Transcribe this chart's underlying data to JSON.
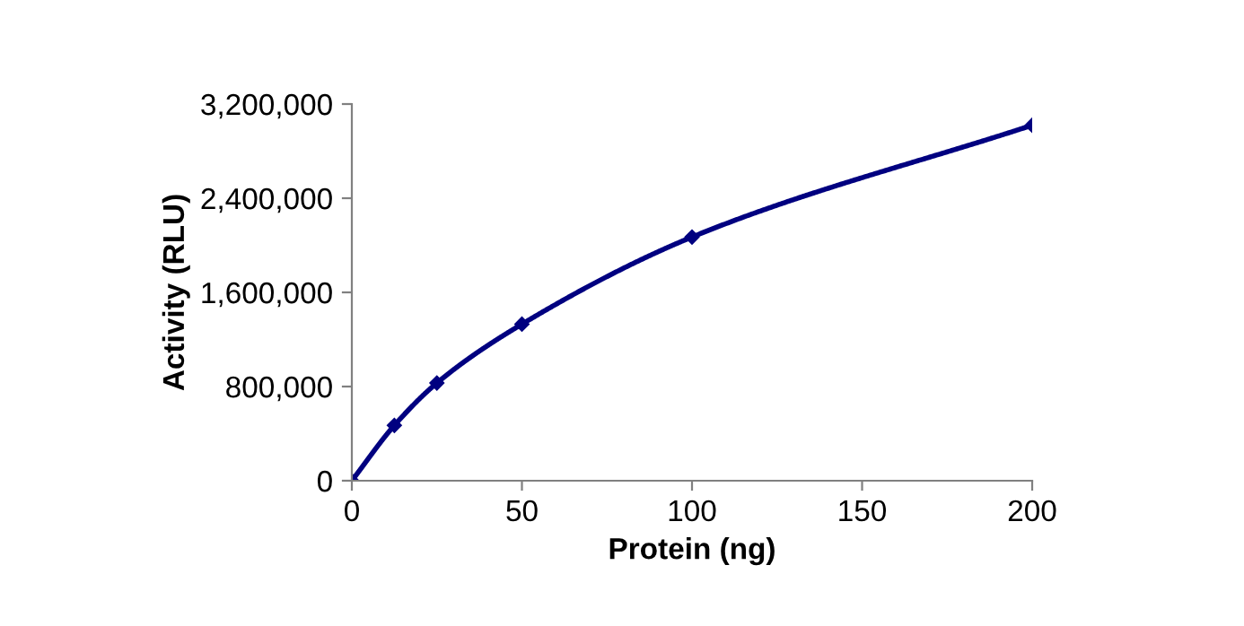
{
  "chart_data": {
    "type": "line",
    "xlabel": "Protein (ng)",
    "ylabel": "Activity (RLU)",
    "x": [
      0,
      12.5,
      25,
      50,
      100,
      200
    ],
    "series": [
      {
        "color": "#000080",
        "values": [
          0,
          470000,
          830000,
          1330000,
          2070000,
          3020000
        ]
      }
    ],
    "xlim": [
      0,
      200
    ],
    "xticks": [
      0,
      50,
      100,
      150,
      200
    ],
    "ylim": [
      0,
      3200000
    ],
    "yticks": [
      {
        "value": 0,
        "label": "0"
      },
      {
        "value": 800000,
        "label": "800,000"
      },
      {
        "value": 1600000,
        "label": "1,600,000"
      },
      {
        "value": 2400000,
        "label": "2,400,000"
      },
      {
        "value": 3200000,
        "label": "3,200,000"
      }
    ],
    "marker": "diamond",
    "line_style": "solid",
    "grid": false,
    "legend": false
  }
}
